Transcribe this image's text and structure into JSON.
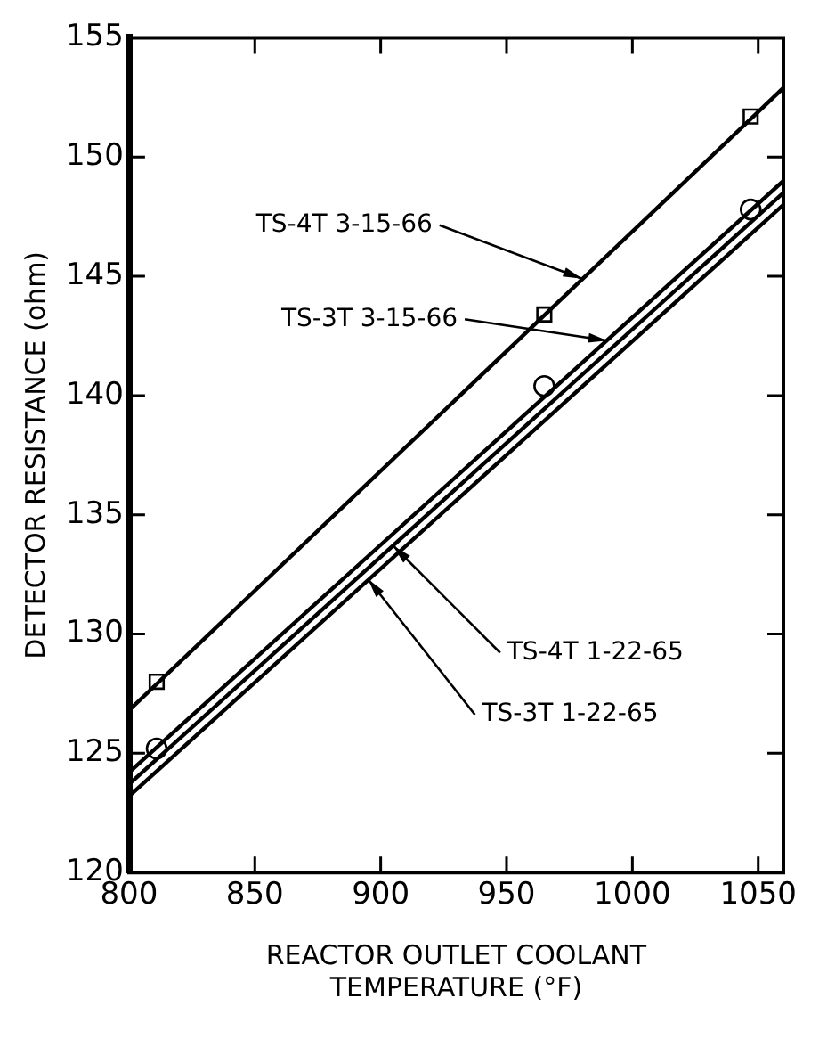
{
  "chart_data": {
    "type": "line",
    "xlabel": "REACTOR OUTLET COOLANT TEMPERATURE (°F)",
    "ylabel": "DETECTOR RESISTANCE (ohm)",
    "xlim": [
      800,
      1060
    ],
    "xticks": [
      800,
      850,
      900,
      950,
      1000,
      1050
    ],
    "ylim": [
      120,
      155
    ],
    "yticks": [
      120,
      125,
      130,
      135,
      140,
      145,
      150,
      155
    ],
    "grid": false,
    "legend": false,
    "marker": "none",
    "line_style": "solid",
    "series": [
      {
        "color": "#000000",
        "x": [
          800,
          1060
        ],
        "values": [
          126.8,
          152.9
        ]
      },
      {
        "color": "#000000",
        "x": [
          800,
          1060
        ],
        "values": [
          124.2,
          149.0
        ]
      },
      {
        "color": "#000000",
        "x": [
          800,
          1060
        ],
        "values": [
          123.7,
          148.5
        ]
      },
      {
        "color": "#000000",
        "x": [
          800,
          1060
        ],
        "values": [
          123.2,
          148.0
        ]
      },
      {
        "type": "scatter",
        "color": "#000000",
        "marker": "square",
        "x": [
          811,
          965,
          1047
        ],
        "values": [
          128.0,
          143.4,
          151.7
        ]
      },
      {
        "type": "scatter",
        "color": "#000000",
        "marker": "circle",
        "x": [
          811,
          965,
          1047
        ],
        "values": [
          125.2,
          140.4,
          147.8
        ]
      }
    ],
    "annotations": [
      {
        "text": "TS-4T 3-15-66",
        "x": 980,
        "y": 144.9
      },
      {
        "text": "TS-3T 3-15-66",
        "x": 990,
        "y": 142.3
      },
      {
        "text": "TS-4T 1-22-65",
        "x": 905,
        "y": 133.7
      },
      {
        "text": "TS-3T 1-22-65",
        "x": 895,
        "y": 132.3
      }
    ]
  }
}
